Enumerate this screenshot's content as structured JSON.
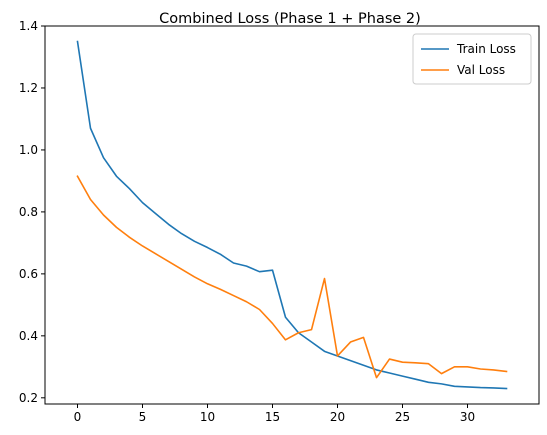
{
  "chart_data": {
    "type": "line",
    "title": "Combined Loss (Phase 1 + Phase 2)",
    "xlabel": "",
    "ylabel": "",
    "xlim": [
      -2.5,
      35.5
    ],
    "ylim": [
      0.18,
      1.4
    ],
    "x_ticks": [
      0,
      5,
      10,
      15,
      20,
      25,
      30
    ],
    "x_tick_labels": [
      "0",
      "5",
      "10",
      "15",
      "20",
      "25",
      "30"
    ],
    "y_ticks": [
      0.2,
      0.4,
      0.6,
      0.8,
      1.0,
      1.2,
      1.4
    ],
    "y_tick_labels": [
      "0.2",
      "0.4",
      "0.6",
      "0.8",
      "1.0",
      "1.2",
      "1.4"
    ],
    "grid": false,
    "legend_position": "top-right",
    "x": [
      0,
      1,
      2,
      3,
      4,
      5,
      6,
      7,
      8,
      9,
      10,
      11,
      12,
      13,
      14,
      15,
      16,
      17,
      18,
      19,
      20,
      21,
      22,
      23,
      24,
      25,
      26,
      27,
      28,
      29,
      30,
      31,
      32,
      33
    ],
    "series": [
      {
        "name": "Train Loss",
        "color": "#1f77b4",
        "values": [
          1.35,
          1.07,
          0.975,
          0.915,
          0.875,
          0.83,
          0.795,
          0.76,
          0.73,
          0.705,
          0.685,
          0.663,
          0.635,
          0.625,
          0.607,
          0.612,
          0.46,
          0.41,
          0.38,
          0.35,
          0.335,
          0.32,
          0.305,
          0.29,
          0.28,
          0.27,
          0.26,
          0.25,
          0.245,
          0.237,
          0.235,
          0.233,
          0.232,
          0.23
        ]
      },
      {
        "name": "Val Loss",
        "color": "#ff7f0e",
        "values": [
          0.915,
          0.84,
          0.79,
          0.75,
          0.718,
          0.69,
          0.665,
          0.64,
          0.615,
          0.59,
          0.568,
          0.55,
          0.53,
          0.51,
          0.485,
          0.44,
          0.387,
          0.41,
          0.42,
          0.585,
          0.335,
          0.38,
          0.395,
          0.265,
          0.325,
          0.315,
          0.313,
          0.31,
          0.278,
          0.3,
          0.3,
          0.293,
          0.29,
          0.285
        ]
      }
    ]
  }
}
